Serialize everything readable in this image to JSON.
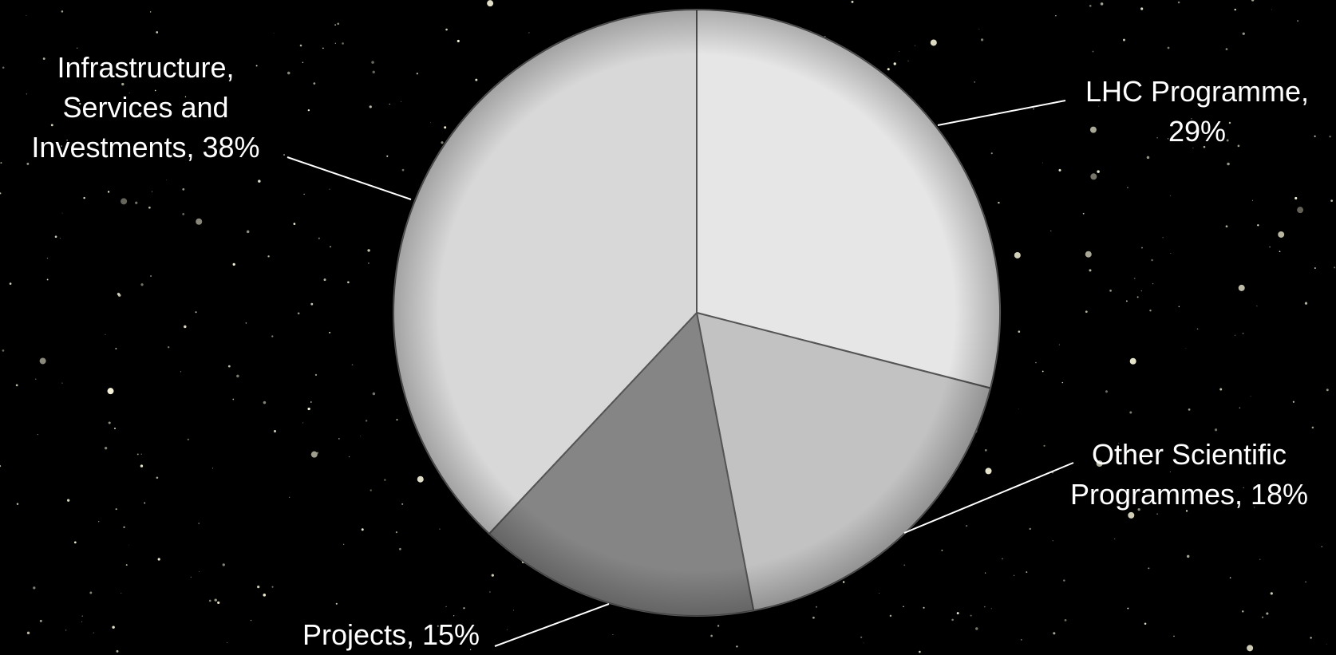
{
  "chart_data": {
    "type": "pie",
    "values": [
      29,
      18,
      15,
      38
    ],
    "value_labels": [
      "LHC Programme, 29%",
      "Other Scientific Programmes, 18%",
      "Projects, 15%",
      "Infrastructure, Services and Investments, 38%"
    ],
    "colors": [
      "#e6e6e6",
      "#c2c2c2",
      "#858585",
      "#d8d8d8"
    ]
  }
}
